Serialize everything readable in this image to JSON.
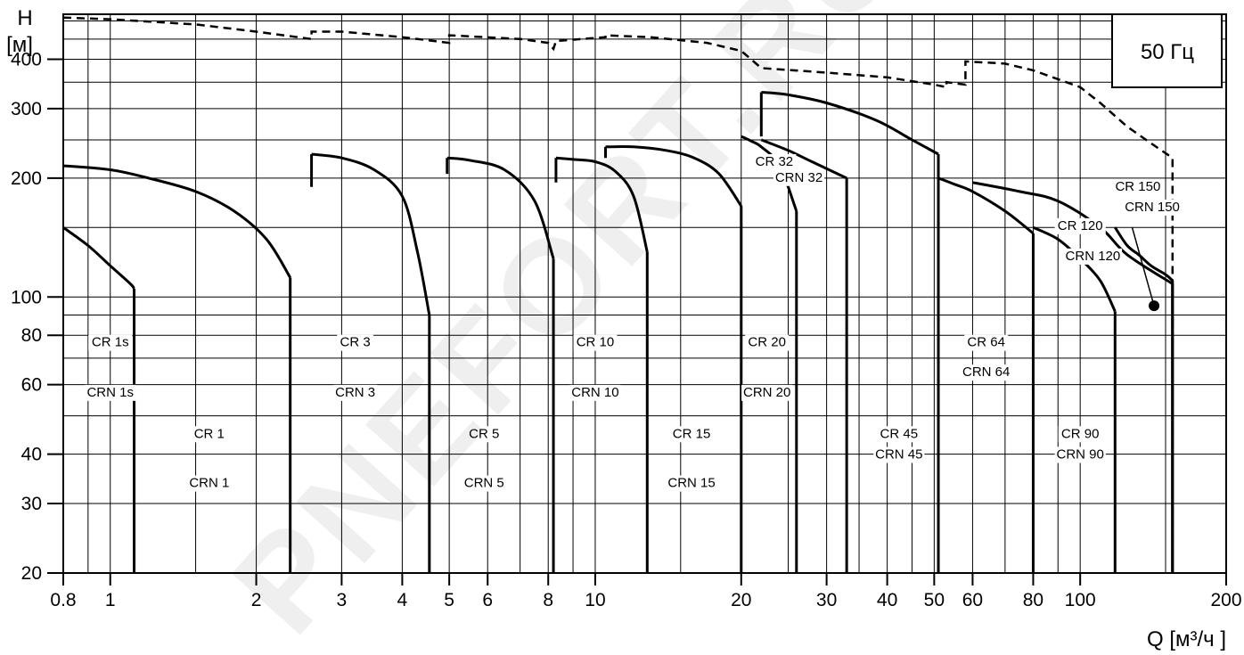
{
  "chart_data": {
    "type": "line",
    "title": "",
    "frequency_badge": "50 Гц",
    "watermark": "PNEFORT.RU",
    "y_axis": {
      "label_symbol": "H",
      "label_unit": "[м]",
      "scale": "log",
      "range": [
        20,
        520
      ],
      "ticks": [
        {
          "value": 20,
          "label": "20"
        },
        {
          "value": 30,
          "label": "30"
        },
        {
          "value": 40,
          "label": "40"
        },
        {
          "value": 60,
          "label": "60"
        },
        {
          "value": 80,
          "label": "80"
        },
        {
          "value": 100,
          "label": "100"
        },
        {
          "value": 200,
          "label": "200"
        },
        {
          "value": 300,
          "label": "300"
        },
        {
          "value": 400,
          "label": "400"
        }
      ],
      "minor_gridlines": [
        50,
        70,
        90,
        150,
        250,
        350,
        450,
        500
      ]
    },
    "x_axis": {
      "label": "Q [м³/ч ]",
      "scale": "log",
      "range": [
        0.8,
        200
      ],
      "ticks": [
        {
          "value": 0.8,
          "label": "0.8"
        },
        {
          "value": 1,
          "label": "1"
        },
        {
          "value": 2,
          "label": "2"
        },
        {
          "value": 3,
          "label": "3"
        },
        {
          "value": 4,
          "label": "4"
        },
        {
          "value": 5,
          "label": "5"
        },
        {
          "value": 6,
          "label": "6"
        },
        {
          "value": 8,
          "label": "8"
        },
        {
          "value": 10,
          "label": "10"
        },
        {
          "value": 20,
          "label": "20"
        },
        {
          "value": 30,
          "label": "30"
        },
        {
          "value": 40,
          "label": "40"
        },
        {
          "value": 50,
          "label": "50"
        },
        {
          "value": 60,
          "label": "60"
        },
        {
          "value": 80,
          "label": "80"
        },
        {
          "value": 100,
          "label": "100"
        },
        {
          "value": 200,
          "label": "200"
        }
      ],
      "minor_gridlines": [
        0.9,
        1.5,
        7,
        9,
        15,
        25,
        35,
        45,
        70,
        90,
        150
      ]
    },
    "grid": true,
    "series": [
      {
        "id": "cr1s",
        "points": [
          [
            0.8,
            150
          ],
          [
            0.9,
            135
          ],
          [
            1.0,
            120
          ],
          [
            1.1,
            108
          ],
          [
            1.12,
            105
          ]
        ],
        "end_q": 1.12
      },
      {
        "id": "cr1",
        "points": [
          [
            0.8,
            215
          ],
          [
            1.0,
            210
          ],
          [
            1.2,
            200
          ],
          [
            1.5,
            185
          ],
          [
            1.8,
            165
          ],
          [
            2.1,
            140
          ],
          [
            2.35,
            112
          ]
        ],
        "end_q": 2.35
      },
      {
        "id": "cr3",
        "start_h_low": 190,
        "points": [
          [
            2.6,
            230
          ],
          [
            3.0,
            225
          ],
          [
            3.5,
            210
          ],
          [
            4.0,
            180
          ],
          [
            4.3,
            130
          ],
          [
            4.55,
            90
          ]
        ],
        "end_q": 4.55
      },
      {
        "id": "cr5",
        "start_h_low": 205,
        "points": [
          [
            4.95,
            225
          ],
          [
            5.5,
            222
          ],
          [
            6.5,
            210
          ],
          [
            7.5,
            175
          ],
          [
            8.2,
            125
          ]
        ],
        "end_q": 8.2
      },
      {
        "id": "cr10",
        "start_h_low": 195,
        "points": [
          [
            8.3,
            225
          ],
          [
            9,
            223
          ],
          [
            10,
            220
          ],
          [
            11,
            208
          ],
          [
            12,
            180
          ],
          [
            12.8,
            130
          ]
        ],
        "end_q": 12.8
      },
      {
        "id": "cr15",
        "start_h_low": 225,
        "points": [
          [
            10.5,
            240
          ],
          [
            12,
            240
          ],
          [
            14,
            235
          ],
          [
            16,
            225
          ],
          [
            18,
            205
          ],
          [
            20,
            170
          ]
        ],
        "end_q": 20
      },
      {
        "id": "cr20",
        "points": [
          [
            20,
            255
          ],
          [
            21,
            248
          ],
          [
            22,
            240
          ],
          [
            24,
            215
          ],
          [
            26,
            165
          ]
        ],
        "end_q": 26
      },
      {
        "id": "cr32",
        "start_h_low": 255,
        "points": [
          [
            22,
            330
          ],
          [
            25,
            325
          ],
          [
            30,
            310
          ],
          [
            38,
            280
          ],
          [
            45,
            250
          ],
          [
            51,
            230
          ]
        ],
        "end_q": 51
      },
      {
        "id": "cr45",
        "points": [
          [
            22,
            250
          ],
          [
            25,
            235
          ],
          [
            28,
            220
          ],
          [
            33,
            200
          ]
        ],
        "end_q": 33
      },
      {
        "id": "cr64",
        "points": [
          [
            51,
            200
          ],
          [
            55,
            193
          ],
          [
            60,
            185
          ],
          [
            70,
            165
          ],
          [
            80,
            145
          ]
        ],
        "end_q": 80
      },
      {
        "id": "cr90",
        "points": [
          [
            60,
            195
          ],
          [
            75,
            185
          ],
          [
            90,
            175
          ],
          [
            110,
            150
          ],
          [
            125,
            128
          ],
          [
            155,
            108
          ]
        ],
        "end_q": 155
      },
      {
        "id": "cr120",
        "points": [
          [
            80,
            150
          ],
          [
            90,
            140
          ],
          [
            100,
            125
          ],
          [
            110,
            110
          ],
          [
            118,
            92
          ]
        ],
        "end_q": 118
      },
      {
        "id": "cr150",
        "points": [
          [
            118,
            150
          ],
          [
            125,
            135
          ],
          [
            132,
            128
          ],
          [
            140,
            120
          ],
          [
            150,
            114
          ],
          [
            155,
            110
          ]
        ],
        "end_q": 155
      }
    ],
    "max_head_envelope": {
      "style": "dashed",
      "points": [
        [
          0.8,
          510
        ],
        [
          1,
          505
        ],
        [
          1.5,
          490
        ],
        [
          2,
          470
        ],
        [
          2.6,
          450
        ],
        [
          2.6,
          470
        ],
        [
          3,
          470
        ],
        [
          4,
          455
        ],
        [
          5,
          440
        ],
        [
          5,
          460
        ],
        [
          7,
          450
        ],
        [
          8,
          440
        ],
        [
          8.2,
          425
        ],
        [
          8.3,
          445
        ],
        [
          10.5,
          455
        ],
        [
          10.5,
          460
        ],
        [
          13,
          455
        ],
        [
          17,
          440
        ],
        [
          20,
          420
        ],
        [
          22,
          380
        ],
        [
          30,
          370
        ],
        [
          40,
          360
        ],
        [
          50,
          345
        ],
        [
          53,
          340
        ],
        [
          53,
          350
        ],
        [
          58,
          345
        ],
        [
          58,
          395
        ],
        [
          70,
          390
        ],
        [
          80,
          375
        ],
        [
          100,
          340
        ],
        [
          110,
          310
        ],
        [
          125,
          270
        ],
        [
          140,
          245
        ],
        [
          155,
          225
        ],
        [
          155,
          20
        ]
      ]
    },
    "marker": {
      "q": 142,
      "h": 95
    },
    "zone_labels": [
      {
        "text": "CR 1s",
        "q": 1.0,
        "h": 75
      },
      {
        "text": "CRN 1s",
        "q": 1.0,
        "h": 56
      },
      {
        "text": "CR 1",
        "q": 1.6,
        "h": 44
      },
      {
        "text": "CRN 1",
        "q": 1.6,
        "h": 33
      },
      {
        "text": "CR 3",
        "q": 3.2,
        "h": 75
      },
      {
        "text": "CRN 3",
        "q": 3.2,
        "h": 56
      },
      {
        "text": "CR 5",
        "q": 5.9,
        "h": 44
      },
      {
        "text": "CRN 5",
        "q": 5.9,
        "h": 33
      },
      {
        "text": "CR 10",
        "q": 10.0,
        "h": 75
      },
      {
        "text": "CRN 10",
        "q": 10.0,
        "h": 56
      },
      {
        "text": "CR 15",
        "q": 15.8,
        "h": 44
      },
      {
        "text": "CRN 15",
        "q": 15.8,
        "h": 33
      },
      {
        "text": "CR 20",
        "q": 22.6,
        "h": 75
      },
      {
        "text": "CRN 20",
        "q": 22.6,
        "h": 56
      },
      {
        "text": "CR 32",
        "q": 23.4,
        "h": 215
      },
      {
        "text": "CRN 32",
        "q": 26.3,
        "h": 196
      },
      {
        "text": "CR 45",
        "q": 42.3,
        "h": 44
      },
      {
        "text": "CRN 45",
        "q": 42.3,
        "h": 39
      },
      {
        "text": "CR 64",
        "q": 64.0,
        "h": 75
      },
      {
        "text": "CRN 64",
        "q": 64.0,
        "h": 63
      },
      {
        "text": "CR 90",
        "q": 100.0,
        "h": 44
      },
      {
        "text": "CRN 90",
        "q": 100.0,
        "h": 39
      },
      {
        "text": "CR 120",
        "q": 100.0,
        "h": 148
      },
      {
        "text": "CRN 120",
        "q": 106.2,
        "h": 124
      },
      {
        "text": "CR 150",
        "q": 131.5,
        "h": 186
      },
      {
        "text": "CRN 150",
        "q": 140.8,
        "h": 165
      }
    ]
  }
}
